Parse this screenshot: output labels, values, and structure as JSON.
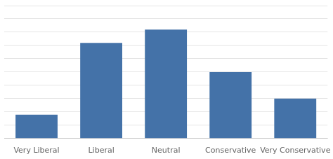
{
  "chart_data": {
    "type": "bar",
    "categories": [
      "Very Liberal",
      "Liberal",
      "Neutral",
      "Conservative",
      "Very Conservative"
    ],
    "values": [
      18,
      72,
      82,
      50,
      30
    ],
    "color": "#4472A8",
    "ylim": [
      0,
      100
    ],
    "yticks": [
      0,
      10,
      20,
      30,
      40,
      50,
      60,
      70,
      80,
      90,
      100
    ],
    "grid": true,
    "tick_labels": "x"
  }
}
